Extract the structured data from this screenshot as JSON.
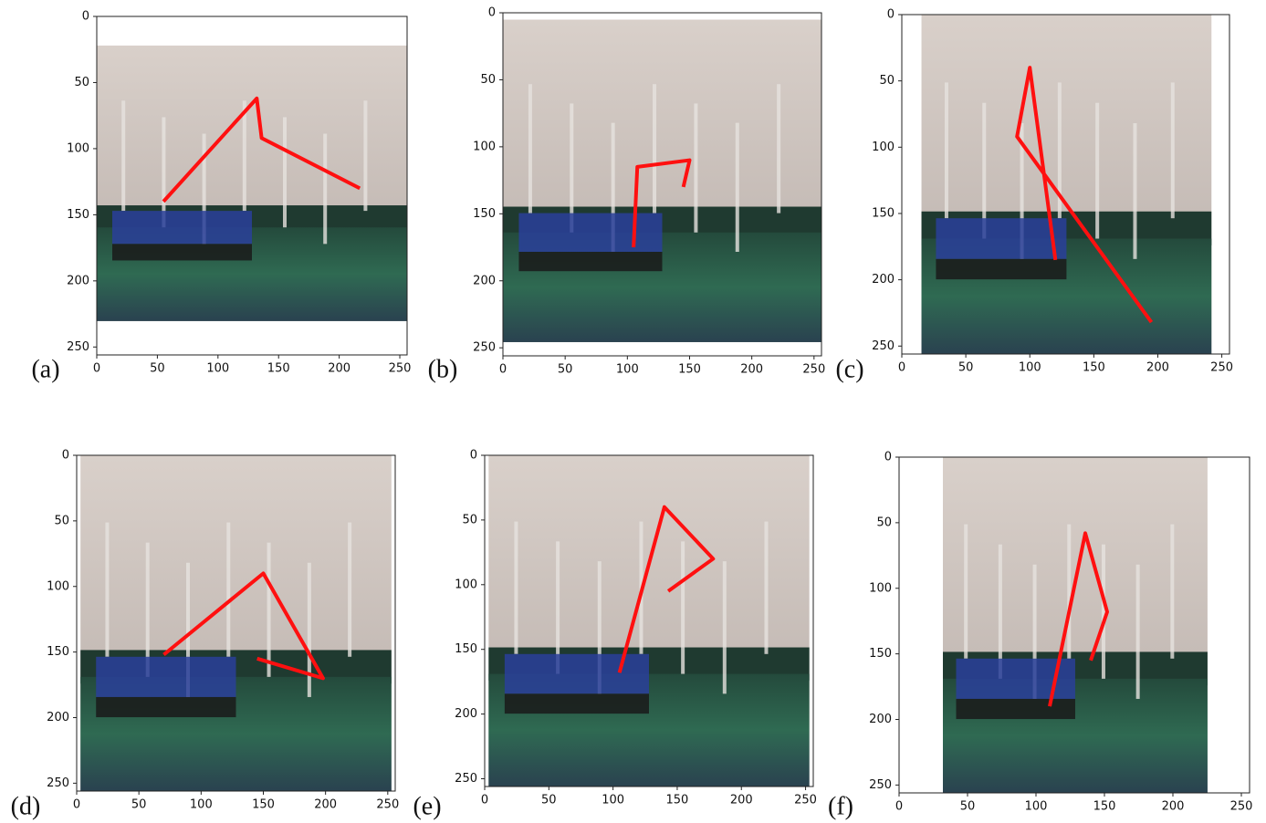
{
  "chart_data": [
    {
      "type": "line",
      "label": "(a)",
      "x": [
        55,
        132,
        136,
        217
      ],
      "y": [
        140,
        62,
        92,
        130
      ],
      "color": "#ff1010",
      "xlim": [
        0,
        256
      ],
      "ylim": [
        256,
        0
      ],
      "xticks": [
        0,
        50,
        100,
        150,
        200,
        250
      ],
      "yticks": [
        0,
        50,
        100,
        150,
        200,
        250
      ]
    },
    {
      "type": "line",
      "label": "(b)",
      "x": [
        105,
        108,
        150,
        145
      ],
      "y": [
        175,
        115,
        110,
        130
      ],
      "color": "#ff1010",
      "xlim": [
        0,
        256
      ],
      "ylim": [
        256,
        0
      ],
      "xticks": [
        0,
        50,
        100,
        150,
        200,
        250
      ],
      "yticks": [
        0,
        50,
        100,
        150,
        200,
        250
      ]
    },
    {
      "type": "line",
      "label": "(c)",
      "x": [
        120,
        100,
        90,
        195
      ],
      "y": [
        185,
        40,
        92,
        232
      ],
      "color": "#ff1010",
      "xlim": [
        0,
        256
      ],
      "ylim": [
        256,
        0
      ],
      "xticks": [
        0,
        50,
        100,
        150,
        200,
        250
      ],
      "yticks": [
        0,
        50,
        100,
        150,
        200,
        250
      ]
    },
    {
      "type": "line",
      "label": "(d)",
      "x": [
        70,
        150,
        198,
        145
      ],
      "y": [
        152,
        90,
        170,
        155
      ],
      "color": "#ff1010",
      "xlim": [
        0,
        256
      ],
      "ylim": [
        256,
        0
      ],
      "xticks": [
        0,
        50,
        100,
        150,
        200,
        250
      ],
      "yticks": [
        0,
        50,
        100,
        150,
        200,
        250
      ]
    },
    {
      "type": "line",
      "label": "(e)",
      "x": [
        105,
        140,
        178,
        143
      ],
      "y": [
        168,
        40,
        80,
        105
      ],
      "color": "#ff1010",
      "xlim": [
        0,
        256
      ],
      "ylim": [
        256,
        0
      ],
      "xticks": [
        0,
        50,
        100,
        150,
        200,
        250
      ],
      "yticks": [
        0,
        50,
        100,
        150,
        200,
        250
      ]
    },
    {
      "type": "line",
      "label": "(f)",
      "x": [
        110,
        136,
        152,
        140
      ],
      "y": [
        190,
        58,
        118,
        155
      ],
      "color": "#ff1010",
      "xlim": [
        0,
        256
      ],
      "ylim": [
        256,
        0
      ],
      "xticks": [
        0,
        50,
        100,
        150,
        200,
        250
      ],
      "yticks": [
        0,
        50,
        100,
        150,
        200,
        250
      ]
    }
  ]
}
